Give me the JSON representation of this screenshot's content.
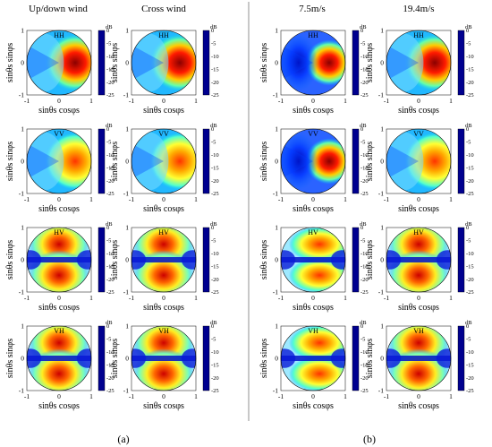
{
  "figure": {
    "panels": [
      {
        "label": "(a)",
        "columns": [
          "Up/down wind",
          "Cross wind"
        ]
      },
      {
        "label": "(b)",
        "columns": [
          "7.5m/s",
          "19.4m/s"
        ]
      }
    ],
    "rows": [
      "HH",
      "VV",
      "HV",
      "VH"
    ],
    "axes": {
      "xlabel": "sinθs cosφs",
      "ylabel": "sinθs sinφs",
      "ticks": [
        -1,
        0,
        1
      ]
    },
    "colorbar": {
      "unit": "dB",
      "ticks": [
        0,
        -5,
        -10,
        -15,
        -20,
        -25
      ],
      "range": [
        -25,
        0
      ],
      "colormap": "jet"
    }
  },
  "chart_data": {
    "type": "heatmap",
    "description_of_grid": "4 rows (polarizations) x 4 columns of polar bistatic scattering maps",
    "rows": [
      "HH",
      "VV",
      "HV",
      "VH"
    ],
    "columns": [
      "Up/down wind",
      "Cross wind",
      "7.5m/s",
      "19.4m/s"
    ],
    "xlim": [
      -1,
      1
    ],
    "ylim": [
      -1,
      1
    ],
    "zlim": [
      -25,
      0
    ],
    "zunit": "dB",
    "colormap": "jet"
  }
}
